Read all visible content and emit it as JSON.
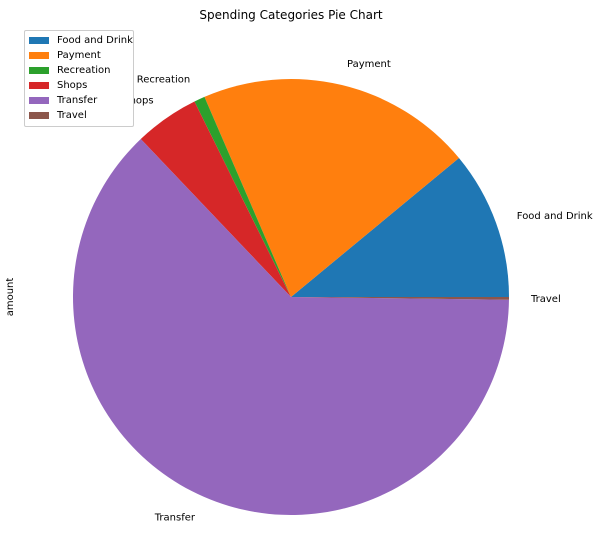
{
  "chart_data": {
    "type": "pie",
    "title": "Spending Categories Pie Chart",
    "ylabel": "amount",
    "legend_placement": "top-left",
    "slices": [
      {
        "label": "Food and Drink",
        "value": 11.0,
        "color": "#1f77b4"
      },
      {
        "label": "Payment",
        "value": 20.5,
        "color": "#ff7f0e"
      },
      {
        "label": "Recreation",
        "value": 0.8,
        "color": "#2ca02c"
      },
      {
        "label": "Shops",
        "value": 4.8,
        "color": "#d62728"
      },
      {
        "label": "Transfer",
        "value": 62.7,
        "color": "#9467bd"
      },
      {
        "label": "Travel",
        "value": 0.2,
        "color": "#8c564b"
      }
    ]
  }
}
